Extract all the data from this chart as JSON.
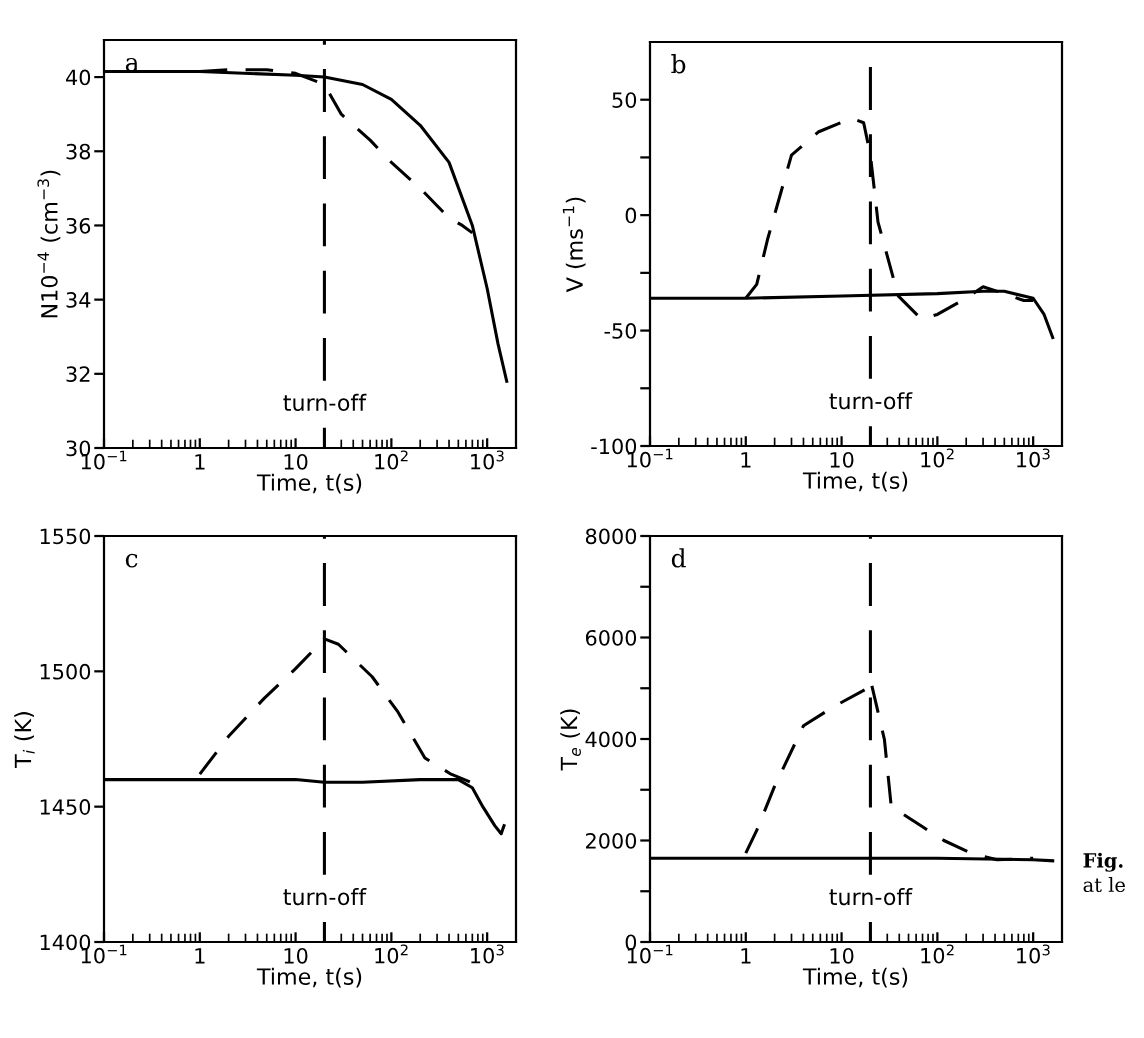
{
  "chart_data": [
    {
      "type": "line",
      "xlabel": "Time, t(s)",
      "ylabel": "N10$^{−4}$ (cm$^{−3}$)",
      "annotations": [
        "a"
      ],
      "log": "x",
      "marker": "none",
      "grid": false,
      "legend": false,
      "xlim": [
        0.1,
        2000
      ],
      "xticks": [
        {
          "value": 0.1,
          "label": "10$^{−1}$"
        },
        1,
        10,
        {
          "value": 100,
          "label": "10$^{2}$"
        },
        {
          "value": 1000,
          "label": "10$^{3}$"
        }
      ],
      "ylim": [
        30,
        41
      ],
      "yticks": [
        30,
        32,
        34,
        36,
        38,
        40
      ],
      "ref_lines": [
        {
          "axis": "x",
          "value": 20,
          "label": "turn-off",
          "color": "#000000",
          "line_style": "dashed"
        }
      ],
      "series": [
        {
          "color": "#000000",
          "line_style": "solid",
          "x": [
            0.1,
            1,
            10,
            20,
            50,
            100,
            200,
            400,
            700,
            1000,
            1300,
            1600
          ],
          "values": [
            40.15,
            40.15,
            40.05,
            40.0,
            39.8,
            39.4,
            38.7,
            37.7,
            36.0,
            34.3,
            32.8,
            31.8
          ]
        },
        {
          "color": "#000000",
          "line_style": "dashed",
          "x": [
            1,
            2,
            5,
            10,
            20,
            30,
            60,
            100,
            200,
            400,
            550,
            700
          ],
          "values": [
            40.15,
            40.2,
            40.2,
            40.1,
            39.8,
            39.0,
            38.3,
            37.7,
            37.0,
            36.2,
            36.0,
            35.8
          ]
        }
      ]
    },
    {
      "type": "line",
      "xlabel": "Time, t(s)",
      "ylabel": "V (ms$^{−1}$)",
      "annotations": [
        "b"
      ],
      "log": "x",
      "marker": "none",
      "grid": false,
      "legend": false,
      "xlim": [
        0.1,
        2000
      ],
      "xticks": [
        {
          "value": 0.1,
          "label": "10$^{−1}$"
        },
        1,
        10,
        {
          "value": 100,
          "label": "10$^{2}$"
        },
        {
          "value": 1000,
          "label": "10$^{3}$"
        }
      ],
      "ylim": [
        -100,
        75
      ],
      "yticks": [
        -100,
        {
          "value": -75,
          "label": null
        },
        -50,
        {
          "value": -25,
          "label": null
        },
        0,
        {
          "value": 25,
          "label": null
        },
        50
      ],
      "ref_lines": [
        {
          "axis": "x",
          "value": 20,
          "label": "turn-off",
          "color": "#000000",
          "line_style": "dashed"
        }
      ],
      "series": [
        {
          "color": "#000000",
          "line_style": "solid",
          "x": [
            0.1,
            1,
            10,
            100,
            300,
            500,
            1000,
            1300,
            1600
          ],
          "values": [
            -36,
            -36,
            -35,
            -34,
            -33,
            -33,
            -36,
            -43,
            -53
          ]
        },
        {
          "color": "#000000",
          "line_style": "dashed",
          "x": [
            1,
            1.3,
            1.7,
            3,
            5.7,
            12.7,
            17,
            20,
            24,
            39,
            68,
            100,
            200,
            300,
            500,
            800,
            1000
          ],
          "values": [
            -36,
            -30,
            -10,
            26,
            36,
            42,
            40,
            26,
            -3,
            -35,
            -45,
            -43,
            -36,
            -31,
            -34,
            -37,
            -37
          ]
        }
      ]
    },
    {
      "type": "line",
      "xlabel": "Time, t(s)",
      "ylabel": "T$_{i}$ (K)",
      "annotations": [
        "c"
      ],
      "log": "x",
      "marker": "none",
      "grid": false,
      "legend": false,
      "xlim": [
        0.1,
        2000
      ],
      "xticks": [
        {
          "value": 0.1,
          "label": "10$^{−1}$"
        },
        1,
        10,
        {
          "value": 100,
          "label": "10$^{2}$"
        },
        {
          "value": 1000,
          "label": "10$^{3}$"
        }
      ],
      "ylim": [
        1400,
        1550
      ],
      "yticks": [
        1400,
        1450,
        1500,
        1550
      ],
      "ref_lines": [
        {
          "axis": "x",
          "value": 20,
          "label": "turn-off",
          "color": "#000000",
          "line_style": "dashed"
        }
      ],
      "series": [
        {
          "color": "#000000",
          "line_style": "solid",
          "x": [
            0.1,
            1,
            10,
            20,
            50,
            200,
            500,
            700,
            900,
            1200,
            1400,
            1500
          ],
          "values": [
            1460,
            1460,
            1460,
            1459,
            1459,
            1460,
            1460,
            1457,
            1450,
            1443,
            1440,
            1443
          ]
        },
        {
          "color": "#000000",
          "line_style": "dashed",
          "x": [
            1,
            2,
            4.7,
            10,
            20,
            28,
            63,
            117,
            224,
            420,
            680
          ],
          "values": [
            1462,
            1476,
            1490,
            1501,
            1512,
            1510,
            1498,
            1485,
            1468,
            1462,
            1459
          ]
        }
      ]
    },
    {
      "type": "line",
      "xlabel": "Time, t(s)",
      "ylabel": "T$_{e}$ (K)",
      "annotations": [
        "d",
        "Fig.",
        "at le"
      ],
      "log": "x",
      "marker": "none",
      "grid": false,
      "legend": false,
      "xlim": [
        0.1,
        2000
      ],
      "xticks": [
        {
          "value": 0.1,
          "label": "10$^{−1}$"
        },
        1,
        10,
        {
          "value": 100,
          "label": "10$^{2}$"
        },
        {
          "value": 1000,
          "label": "10$^{3}$"
        }
      ],
      "ylim": [
        0,
        8000
      ],
      "yticks": [
        0,
        {
          "value": 1000,
          "label": null
        },
        2000,
        {
          "value": 3000,
          "label": null
        },
        4000,
        {
          "value": 5000,
          "label": null
        },
        6000,
        {
          "value": 7000,
          "label": null
        },
        8000
      ],
      "ref_lines": [
        {
          "axis": "x",
          "value": 20,
          "label": "turn-off",
          "color": "#000000",
          "line_style": "dashed"
        }
      ],
      "series": [
        {
          "color": "#000000",
          "line_style": "solid",
          "x": [
            0.1,
            1,
            10,
            100,
            1000,
            1600
          ],
          "values": [
            1650,
            1650,
            1650,
            1650,
            1620,
            1600
          ]
        },
        {
          "color": "#000000",
          "line_style": "dashed",
          "x": [
            1,
            1.3,
            2,
            4,
            8.5,
            17.5,
            20,
            28,
            33,
            70,
            117,
            224,
            420,
            1000
          ],
          "values": [
            1750,
            2200,
            3070,
            4260,
            4650,
            4970,
            5170,
            3990,
            2670,
            2270,
            2000,
            1750,
            1620,
            1650
          ]
        }
      ]
    }
  ]
}
